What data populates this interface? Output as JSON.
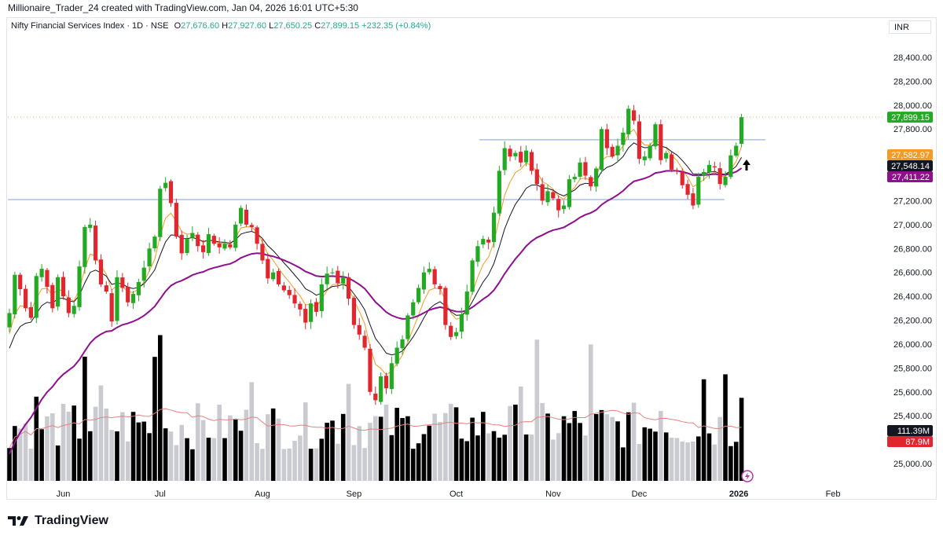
{
  "header": {
    "credit": "Millionaire_Trader_24 created with TradingView.com, Jan 04, 2026 16:01 UTC+5:30"
  },
  "legend": {
    "symbol": "Nifty Financial Services Index · 1D · NSE",
    "o_label": "O",
    "o": "27,676.60",
    "h_label": "H",
    "h": "27,927.60",
    "l_label": "L",
    "l": "27,650.25",
    "c_label": "C",
    "c": "27,899.15",
    "change": "+232.35 (+0.84%)"
  },
  "currency": "INR",
  "footer": {
    "brand": "TradingView"
  },
  "colors": {
    "up": "#22ab22",
    "down": "#e2262e",
    "ema_fast": "#f59a23",
    "ema_mid": "#131722",
    "ema_slow": "#8e0f8f",
    "hline": "#7fa3d6",
    "vol_black": "#000000",
    "vol_grey": "#c9cbd1",
    "vol_ma": "#e88080"
  },
  "chart_data": {
    "type": "candlestick",
    "y_ticks": [
      "28,400.00",
      "28,200.00",
      "28,000.00",
      "27,800.00",
      "27,600.00",
      "27,400.00",
      "27,200.00",
      "27,000.00",
      "26,800.00",
      "26,600.00",
      "26,400.00",
      "26,200.00",
      "26,000.00",
      "25,800.00",
      "25,600.00",
      "25,400.00",
      "25,200.00",
      "25,000.00"
    ],
    "x_labels": [
      "Jun",
      "Jul",
      "Aug",
      "Sep",
      "Oct",
      "Nov",
      "Dec",
      "2026",
      "Feb"
    ],
    "ylim": [
      24950,
      28450
    ],
    "horizontal_lines": [
      27710,
      27210
    ],
    "last_price_badge": {
      "value": "27,899.15",
      "price": 27899.15,
      "color": "#22ab22"
    },
    "ema_badges": [
      {
        "value": "27,582.97",
        "price": 27582.97,
        "color": "#f59a23"
      },
      {
        "value": "27,548.14",
        "price": 27548.14,
        "color": "#131722"
      },
      {
        "value": "27,411.22",
        "price": 27411.22,
        "color": "#8e0f8f"
      }
    ],
    "volume_badges": [
      {
        "value": "111.39M",
        "color": "#131722"
      },
      {
        "value": "87.9M",
        "color": "#e2262e"
      }
    ],
    "closes": [
      26260,
      26580,
      26460,
      26300,
      26220,
      26570,
      26630,
      26480,
      26300,
      26560,
      26400,
      26260,
      26320,
      26650,
      26980,
      27000,
      26700,
      26500,
      26440,
      26190,
      26560,
      26470,
      26350,
      26420,
      26520,
      26640,
      26800,
      26900,
      27300,
      27350,
      27180,
      26900,
      26760,
      26880,
      26930,
      26820,
      26770,
      26920,
      26840,
      26810,
      26840,
      26810,
      27000,
      27140,
      27000,
      26980,
      26840,
      26700,
      26550,
      26600,
      26500,
      26450,
      26410,
      26340,
      26290,
      26180,
      26340,
      26270,
      26500,
      26590,
      26600,
      26510,
      26560,
      26380,
      26160,
      26080,
      25970,
      25600,
      25530,
      25730,
      25630,
      25840,
      25970,
      26040,
      26240,
      26350,
      26470,
      26600,
      26630,
      26500,
      26460,
      26160,
      26060,
      26100,
      26250,
      26440,
      26700,
      26820,
      26880,
      26850,
      27100,
      27450,
      27640,
      27570,
      27600,
      27520,
      27620,
      27450,
      27340,
      27200,
      27280,
      27220,
      27120,
      27160,
      27380,
      27400,
      27520,
      27410,
      27320,
      27470,
      27800,
      27640,
      27570,
      27660,
      27770,
      27970,
      27870,
      27550,
      27570,
      27660,
      27840,
      27540,
      27600,
      27460,
      27450,
      27330,
      27250,
      27160,
      27400,
      27440,
      27500,
      27480,
      27340,
      27400,
      27580,
      27660,
      27899.15
    ]
  }
}
